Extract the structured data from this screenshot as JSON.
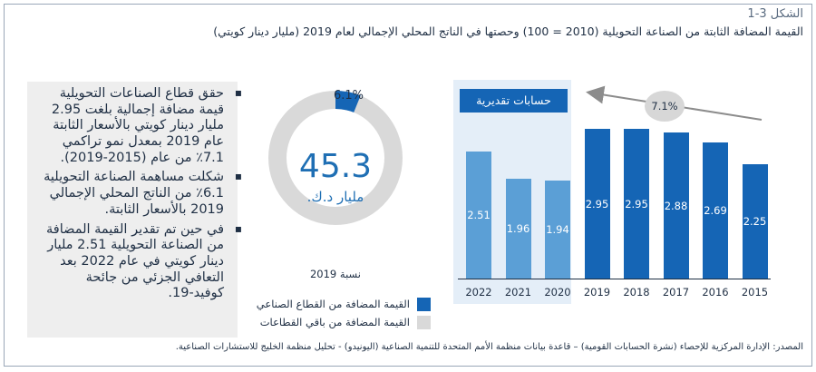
{
  "figure": {
    "label": "الشكل 3-1",
    "title": "القيمة المضافة الثابتة من الصناعة التحويلية (2010 = 100) وحصتها في الناتج المحلي الإجمالي لعام 2019 (مليار دينار كويتي)"
  },
  "bullets": [
    "حقق قطاع الصناعات التحويلية قيمة مضافة إجمالية بلغت 2.95 مليار دينار كويتي بالأسعار الثابتة عام 2019 بمعدل نمو تراكمي 7.1٪ من عام (2015-2019).",
    "شكلت مساهمة الصناعة التحويلية 6.1٪ من الناتج المحلي الإجمالي 2019 بالأسعار الثابتة.",
    "في حين تم تقدير القيمة المضافة من الصناعة التحويلية 2.51 مليار دينار كويتي في عام 2022 بعد التعافي الجزئي من جائحة كوفيد-19."
  ],
  "donut": {
    "total_value": "45.3",
    "total_unit": "مليار د.ك.",
    "share_label": "6.1%",
    "caption": "نسبة 2019",
    "share_fraction": 0.061
  },
  "legend": [
    {
      "label": "القيمة المضافة من القطاع الصناعي",
      "color": "#1565b5"
    },
    {
      "label": "القيمة المضافة من باقي القطاعات",
      "color": "#d9d9d9"
    }
  ],
  "estimate_badge": "حسابات تقديرية",
  "trend_label": "7.1%",
  "source": "المصدر: الإدارة المركزية للإحصاء (نشرة الحسابات القومية) – قاعدة بيانات منظمة الأمم المتحدة للتنمية الصناعية (اليونيدو) - تحليل منظمة الخليج للاستشارات الصناعية.",
  "chart_data": [
    {
      "type": "bar",
      "categories": [
        "2022",
        "2021",
        "2020",
        "2019",
        "2018",
        "2017",
        "2016",
        "2015"
      ],
      "values": [
        2.51,
        1.96,
        1.94,
        2.95,
        2.95,
        2.88,
        2.69,
        2.25
      ],
      "value_labels": [
        "2.51",
        "1.96",
        "1.94",
        "2.95",
        "2.95",
        "2.88",
        "2.69",
        "2.25"
      ],
      "estimated": [
        true,
        true,
        true,
        false,
        false,
        false,
        false,
        false
      ],
      "colors": {
        "actual": "#1565b5",
        "estimated": "#5b9fd6"
      },
      "ylim": [
        0,
        3.4
      ],
      "xlabel": "",
      "ylabel": ""
    },
    {
      "type": "pie",
      "categories": [
        "القيمة المضافة من القطاع الصناعي",
        "القيمة المضافة من باقي القطاعات"
      ],
      "values": [
        6.1,
        93.9
      ]
    }
  ]
}
